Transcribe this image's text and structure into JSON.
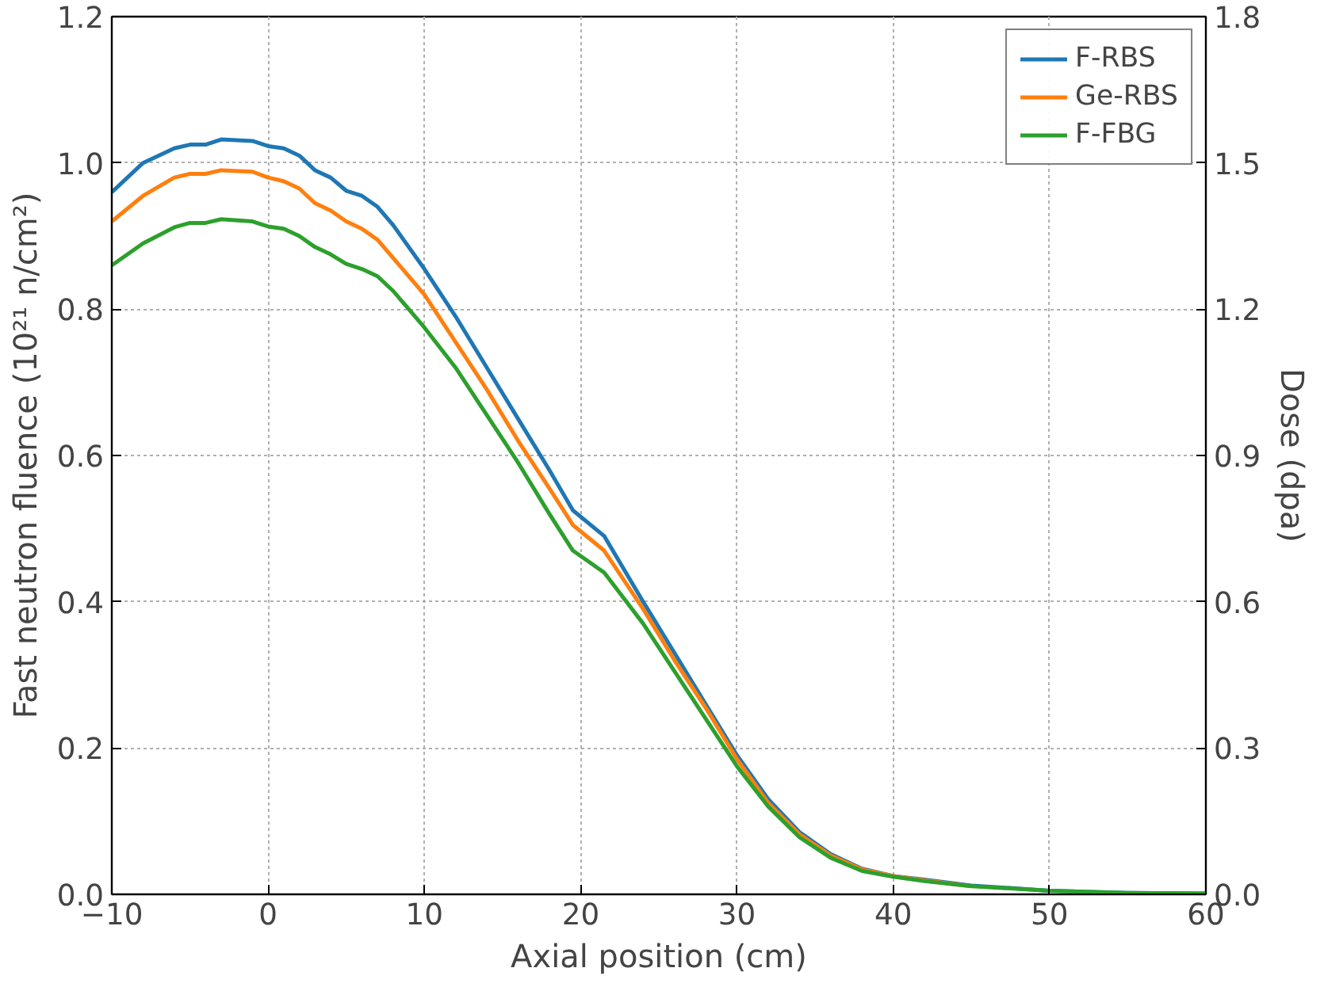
{
  "chart_data": {
    "type": "line",
    "xlabel": "Axial position (cm)",
    "ylabel": "Fast neutron fluence (10²¹ n/cm²)",
    "y2label": "Dose (dpa)",
    "x": [
      -10,
      -8,
      -6,
      -5,
      -4,
      -3,
      -1,
      0,
      1,
      2,
      3,
      4,
      5,
      6,
      7,
      8,
      10,
      12,
      14,
      16,
      18,
      19.5,
      21.5,
      24,
      26,
      28,
      30,
      32,
      34,
      36,
      38,
      40,
      42,
      45,
      50,
      55,
      60
    ],
    "series": [
      {
        "name": "F-RBS",
        "color": "#1f77b4",
        "values": [
          0.96,
          1.0,
          1.02,
          1.025,
          1.025,
          1.032,
          1.03,
          1.023,
          1.02,
          1.01,
          0.99,
          0.98,
          0.962,
          0.955,
          0.94,
          0.915,
          0.855,
          0.79,
          0.72,
          0.65,
          0.58,
          0.525,
          0.49,
          0.4,
          0.33,
          0.26,
          0.19,
          0.13,
          0.085,
          0.055,
          0.035,
          0.025,
          0.02,
          0.012,
          0.005,
          0.002,
          0.001
        ]
      },
      {
        "name": "Ge-RBS",
        "color": "#ff7f0e",
        "values": [
          0.92,
          0.955,
          0.98,
          0.985,
          0.985,
          0.99,
          0.988,
          0.98,
          0.975,
          0.965,
          0.945,
          0.935,
          0.92,
          0.91,
          0.895,
          0.87,
          0.82,
          0.755,
          0.69,
          0.62,
          0.555,
          0.505,
          0.47,
          0.39,
          0.32,
          0.255,
          0.185,
          0.125,
          0.082,
          0.053,
          0.034,
          0.025,
          0.019,
          0.011,
          null,
          null,
          null
        ]
      },
      {
        "name": "F-FBG",
        "color": "#2ca02c",
        "values": [
          0.86,
          0.89,
          0.912,
          0.918,
          0.918,
          0.923,
          0.92,
          0.913,
          0.91,
          0.9,
          0.885,
          0.875,
          0.862,
          0.855,
          0.845,
          0.825,
          0.775,
          0.72,
          0.655,
          0.59,
          0.52,
          0.47,
          0.44,
          0.37,
          0.305,
          0.24,
          0.175,
          0.12,
          0.078,
          0.05,
          0.032,
          0.024,
          0.018,
          0.011,
          0.005,
          0.002,
          0.001
        ]
      }
    ],
    "xlim": [
      -10,
      60
    ],
    "xticks": [
      {
        "value": -10,
        "label": "−10"
      },
      0,
      10,
      20,
      30,
      40,
      50,
      60
    ],
    "ylim": [
      0,
      1.2
    ],
    "yticks": [
      {
        "value": 0,
        "label": "0.0"
      },
      {
        "value": 0.2,
        "label": "0.2"
      },
      {
        "value": 0.4,
        "label": "0.4"
      },
      {
        "value": 0.6,
        "label": "0.6"
      },
      {
        "value": 0.8,
        "label": "0.8"
      },
      {
        "value": 1,
        "label": "1.0"
      },
      {
        "value": 1.2,
        "label": "1.2"
      }
    ],
    "y2lim": [
      0,
      1.8
    ],
    "y2ticks": [
      {
        "value": 0,
        "label": "0.0"
      },
      {
        "value": 0.3,
        "label": "0.3"
      },
      {
        "value": 0.6,
        "label": "0.6"
      },
      {
        "value": 0.9,
        "label": "0.9"
      },
      {
        "value": 1.2,
        "label": "1.2"
      },
      {
        "value": 1.5,
        "label": "1.5"
      },
      {
        "value": 1.8,
        "label": "1.8"
      }
    ],
    "grid": true,
    "legend": "top right",
    "line_style": "solid"
  }
}
